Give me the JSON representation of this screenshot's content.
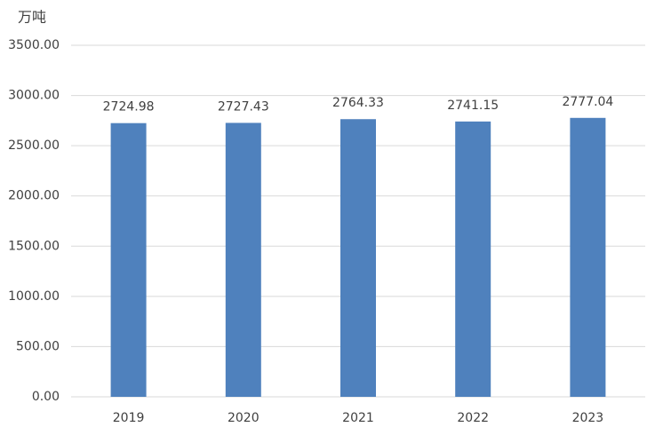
{
  "chart_data": {
    "type": "bar",
    "y_label": "万吨",
    "categories": [
      "2019",
      "2020",
      "2021",
      "2022",
      "2023"
    ],
    "values": [
      2724.98,
      2727.43,
      2764.33,
      2741.15,
      2777.04
    ],
    "color": "#4f81bd",
    "ylim": [
      0,
      3500
    ],
    "yticks": [
      {
        "value": 0,
        "label": "0.00"
      },
      {
        "value": 500,
        "label": "500.00"
      },
      {
        "value": 1000,
        "label": "1000.00"
      },
      {
        "value": 1500,
        "label": "1500.00"
      },
      {
        "value": 2000,
        "label": "2000.00"
      },
      {
        "value": 2500,
        "label": "2500.00"
      },
      {
        "value": 3000,
        "label": "3000.00"
      },
      {
        "value": 3500,
        "label": "3500.00"
      }
    ],
    "grid": true
  }
}
